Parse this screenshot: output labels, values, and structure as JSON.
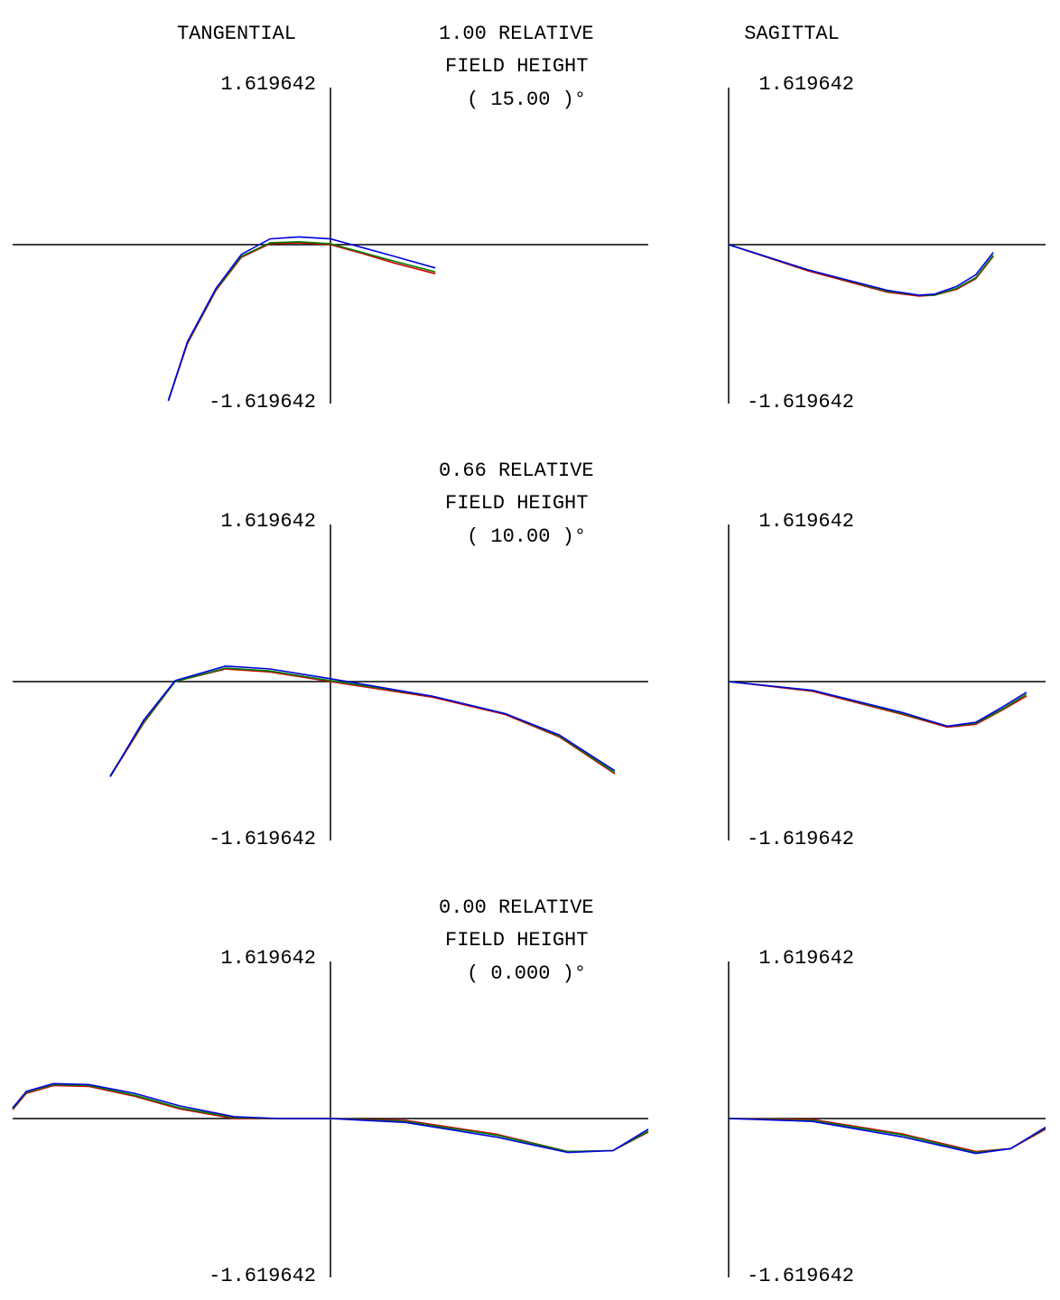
{
  "column_titles": [
    "TANGENTIAL",
    "SAGITTAL"
  ],
  "fields": [
    {
      "relative": "1.00   RELATIVE",
      "field_height": "FIELD HEIGHT",
      "angle": "( 15.00 )°"
    },
    {
      "relative": "0.66   RELATIVE",
      "field_height": "FIELD HEIGHT",
      "angle": "( 10.00 )°"
    },
    {
      "relative": "0.00   RELATIVE",
      "field_height": "FIELD HEIGHT",
      "angle": "( 0.000 )°"
    }
  ],
  "chart_data": [
    {
      "type": "line",
      "xlim": [
        -1,
        1
      ],
      "ylim": [
        -1.619642,
        1.619642
      ],
      "yticks": [
        -1.619642,
        1.619642
      ],
      "x": [
        -0.51,
        -0.45,
        -0.36,
        -0.28,
        -0.19,
        -0.1,
        0,
        0.1,
        0.2,
        0.33
      ],
      "series": [
        {
          "color": "#d00000",
          "values": [
            -1.61,
            -1.02,
            -0.47,
            -0.13,
            0.01,
            0.02,
            0.0,
            -0.09,
            -0.19,
            -0.3
          ]
        },
        {
          "color": "#008000",
          "values": [
            -1.6,
            -1.01,
            -0.46,
            -0.12,
            0.02,
            0.03,
            0.01,
            -0.08,
            -0.17,
            -0.28
          ]
        },
        {
          "color": "#0000e0",
          "values": [
            -1.61,
            -1.0,
            -0.45,
            -0.1,
            0.06,
            0.08,
            0.06,
            -0.03,
            -0.12,
            -0.24
          ]
        }
      ]
    },
    {
      "type": "line",
      "xlim": [
        0,
        1
      ],
      "ylim": [
        -1.619642,
        1.619642
      ],
      "yticks": [
        -1.619642,
        1.619642
      ],
      "x": [
        0,
        0.25,
        0.5,
        0.6,
        0.65,
        0.72,
        0.78,
        0.835
      ],
      "series": [
        {
          "color": "#d00000",
          "values": [
            0,
            -0.27,
            -0.49,
            -0.53,
            -0.52,
            -0.46,
            -0.35,
            -0.12
          ]
        },
        {
          "color": "#008000",
          "values": [
            0,
            -0.26,
            -0.48,
            -0.52,
            -0.52,
            -0.45,
            -0.34,
            -0.11
          ]
        },
        {
          "color": "#0000e0",
          "values": [
            0,
            -0.26,
            -0.47,
            -0.52,
            -0.51,
            -0.43,
            -0.31,
            -0.08
          ]
        }
      ]
    },
    {
      "type": "line",
      "xlim": [
        -1,
        1
      ],
      "ylim": [
        -1.619642,
        1.619642
      ],
      "yticks": [
        -1.619642,
        1.619642
      ],
      "x": [
        -0.693,
        -0.588,
        -0.489,
        -0.33,
        -0.19,
        0,
        0.32,
        0.55,
        0.72,
        0.895
      ],
      "series": [
        {
          "color": "#d00000",
          "values": [
            -0.98,
            -0.43,
            0.0,
            0.13,
            0.1,
            0.0,
            -0.16,
            -0.34,
            -0.57,
            -0.95
          ]
        },
        {
          "color": "#008000",
          "values": [
            -0.97,
            -0.42,
            0.0,
            0.14,
            0.11,
            0.01,
            -0.15,
            -0.33,
            -0.56,
            -0.94
          ]
        },
        {
          "color": "#0000e0",
          "values": [
            -0.98,
            -0.4,
            0.01,
            0.16,
            0.13,
            0.03,
            -0.15,
            -0.33,
            -0.55,
            -0.92
          ]
        }
      ]
    },
    {
      "type": "line",
      "xlim": [
        0,
        1
      ],
      "ylim": [
        -1.619642,
        1.619642
      ],
      "yticks": [
        -1.619642,
        1.619642
      ],
      "x": [
        0,
        0.265,
        0.55,
        0.69,
        0.78,
        0.86,
        0.94
      ],
      "series": [
        {
          "color": "#d00000",
          "values": [
            0,
            -0.1,
            -0.34,
            -0.47,
            -0.44,
            -0.3,
            -0.15
          ]
        },
        {
          "color": "#008000",
          "values": [
            0,
            -0.09,
            -0.33,
            -0.46,
            -0.43,
            -0.29,
            -0.13
          ]
        },
        {
          "color": "#0000e0",
          "values": [
            0,
            -0.09,
            -0.32,
            -0.46,
            -0.42,
            -0.27,
            -0.11
          ]
        }
      ]
    },
    {
      "type": "line",
      "xlim": [
        -1,
        1
      ],
      "ylim": [
        -1.619642,
        1.619642
      ],
      "yticks": [
        -1.619642,
        1.619642
      ],
      "x": [
        -1,
        -0.957,
        -0.872,
        -0.759,
        -0.616,
        -0.474,
        -0.304,
        -0.162,
        0,
        0.236,
        0.52,
        0.747,
        0.889,
        1
      ],
      "series": [
        {
          "color": "#d00000",
          "values": [
            0.09,
            0.26,
            0.34,
            0.33,
            0.23,
            0.1,
            0.0,
            0,
            0,
            -0.02,
            -0.16,
            -0.34,
            -0.33,
            -0.14
          ]
        },
        {
          "color": "#008000",
          "values": [
            0.1,
            0.27,
            0.35,
            0.34,
            0.24,
            0.11,
            0.01,
            0,
            0,
            -0.03,
            -0.17,
            -0.34,
            -0.33,
            -0.13
          ]
        },
        {
          "color": "#0000e0",
          "values": [
            0.11,
            0.28,
            0.36,
            0.35,
            0.26,
            0.13,
            0.02,
            0,
            0,
            -0.04,
            -0.19,
            -0.35,
            -0.33,
            -0.11
          ]
        }
      ]
    },
    {
      "type": "line",
      "xlim": [
        0,
        1
      ],
      "ylim": [
        -1.619642,
        1.619642
      ],
      "yticks": [
        -1.619642,
        1.619642
      ],
      "x": [
        0,
        0.265,
        0.55,
        0.78,
        0.89,
        1
      ],
      "series": [
        {
          "color": "#d00000",
          "values": [
            0,
            -0.01,
            -0.16,
            -0.34,
            -0.31,
            -0.11
          ]
        },
        {
          "color": "#008000",
          "values": [
            0,
            -0.02,
            -0.17,
            -0.35,
            -0.31,
            -0.1
          ]
        },
        {
          "color": "#0000e0",
          "values": [
            0,
            -0.03,
            -0.19,
            -0.36,
            -0.31,
            -0.09
          ]
        }
      ]
    }
  ]
}
